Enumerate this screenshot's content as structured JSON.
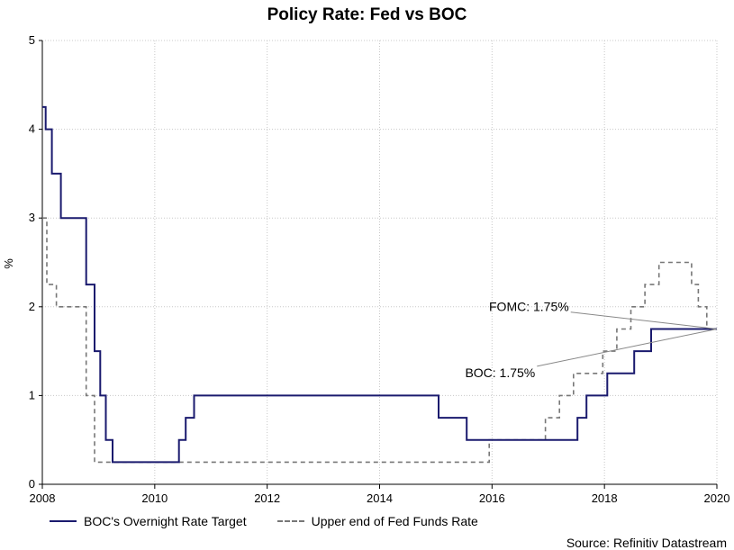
{
  "chart_data": {
    "type": "line",
    "title": "Policy Rate: Fed vs BOC",
    "xlabel": "",
    "ylabel": "%",
    "xlim": [
      2008,
      2020
    ],
    "ylim": [
      0,
      5
    ],
    "x_ticks": [
      "2008",
      "2010",
      "2012",
      "2014",
      "2016",
      "2018",
      "2020"
    ],
    "y_ticks": [
      "0",
      "1",
      "2",
      "3",
      "4",
      "5"
    ],
    "grid": true,
    "series": [
      {
        "name": "BOC's Overnight Rate Target",
        "color": "#1a1a6e",
        "style": "solid",
        "points": [
          [
            2008.0,
            4.25
          ],
          [
            2008.06,
            4.25
          ],
          [
            2008.06,
            4.0
          ],
          [
            2008.17,
            4.0
          ],
          [
            2008.17,
            3.5
          ],
          [
            2008.33,
            3.5
          ],
          [
            2008.33,
            3.0
          ],
          [
            2008.78,
            3.0
          ],
          [
            2008.78,
            2.25
          ],
          [
            2008.93,
            2.25
          ],
          [
            2008.93,
            1.5
          ],
          [
            2009.03,
            1.5
          ],
          [
            2009.03,
            1.0
          ],
          [
            2009.13,
            1.0
          ],
          [
            2009.13,
            0.5
          ],
          [
            2009.25,
            0.5
          ],
          [
            2009.25,
            0.25
          ],
          [
            2010.43,
            0.25
          ],
          [
            2010.43,
            0.5
          ],
          [
            2010.55,
            0.5
          ],
          [
            2010.55,
            0.75
          ],
          [
            2010.7,
            0.75
          ],
          [
            2010.7,
            1.0
          ],
          [
            2015.05,
            1.0
          ],
          [
            2015.05,
            0.75
          ],
          [
            2015.55,
            0.75
          ],
          [
            2015.55,
            0.5
          ],
          [
            2017.52,
            0.5
          ],
          [
            2017.52,
            0.75
          ],
          [
            2017.68,
            0.75
          ],
          [
            2017.68,
            1.0
          ],
          [
            2018.05,
            1.0
          ],
          [
            2018.05,
            1.25
          ],
          [
            2018.53,
            1.25
          ],
          [
            2018.53,
            1.5
          ],
          [
            2018.83,
            1.5
          ],
          [
            2018.83,
            1.75
          ],
          [
            2020.0,
            1.75
          ]
        ]
      },
      {
        "name": "Upper end of Fed Funds Rate",
        "color": "#777777",
        "style": "dashed",
        "points": [
          [
            2008.0,
            3.0
          ],
          [
            2008.08,
            3.0
          ],
          [
            2008.08,
            2.25
          ],
          [
            2008.25,
            2.25
          ],
          [
            2008.25,
            2.0
          ],
          [
            2008.78,
            2.0
          ],
          [
            2008.78,
            1.0
          ],
          [
            2008.93,
            1.0
          ],
          [
            2008.93,
            0.25
          ],
          [
            2015.95,
            0.25
          ],
          [
            2015.95,
            0.5
          ],
          [
            2016.95,
            0.5
          ],
          [
            2016.95,
            0.75
          ],
          [
            2017.2,
            0.75
          ],
          [
            2017.2,
            1.0
          ],
          [
            2017.45,
            1.0
          ],
          [
            2017.45,
            1.25
          ],
          [
            2017.97,
            1.25
          ],
          [
            2017.97,
            1.5
          ],
          [
            2018.22,
            1.5
          ],
          [
            2018.22,
            1.75
          ],
          [
            2018.47,
            1.75
          ],
          [
            2018.47,
            2.0
          ],
          [
            2018.72,
            2.0
          ],
          [
            2018.72,
            2.25
          ],
          [
            2018.97,
            2.25
          ],
          [
            2018.97,
            2.5
          ],
          [
            2019.55,
            2.5
          ],
          [
            2019.55,
            2.25
          ],
          [
            2019.67,
            2.25
          ],
          [
            2019.67,
            2.0
          ],
          [
            2019.82,
            2.0
          ],
          [
            2019.82,
            1.75
          ],
          [
            2020.0,
            1.75
          ]
        ]
      }
    ],
    "annotations": [
      {
        "label": "FOMC: 1.75%",
        "target": [
          2020.0,
          1.75
        ],
        "anchor": [
          2017.4,
          1.94
        ]
      },
      {
        "label": "BOC: 1.75%",
        "target": [
          2020.0,
          1.75
        ],
        "anchor": [
          2016.8,
          1.33
        ]
      }
    ],
    "source": "Source: Refinitiv Datastream"
  }
}
